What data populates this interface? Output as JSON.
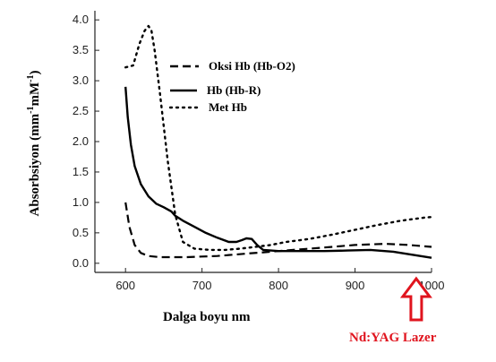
{
  "chart_data": {
    "type": "line",
    "xlabel": "Dalga boyu nm",
    "ylabel_parts": [
      "Absorbsiyon (mm",
      "-1",
      "mM",
      "-1",
      ")"
    ],
    "xlim": [
      560,
      1000
    ],
    "ylim": [
      -0.15,
      4.15
    ],
    "xticks": [
      600,
      700,
      800,
      900,
      1000
    ],
    "yticks": [
      0.0,
      0.5,
      1.0,
      1.5,
      2.0,
      2.5,
      3.0,
      3.5,
      4.0
    ],
    "ytick_labels": [
      "0.0",
      "0.5",
      "1.0",
      "1.5",
      "2.0",
      "2.5",
      "3.0",
      "3.5",
      "4.0"
    ],
    "series": [
      {
        "name": "Oksi Hb (Hb-O2)",
        "style": "dashed",
        "x": [
          600,
          605,
          612,
          620,
          630,
          645,
          660,
          680,
          700,
          720,
          740,
          760,
          780,
          800,
          830,
          860,
          900,
          940,
          970,
          1000
        ],
        "y": [
          1.0,
          0.6,
          0.3,
          0.17,
          0.12,
          0.1,
          0.1,
          0.1,
          0.11,
          0.12,
          0.14,
          0.16,
          0.18,
          0.2,
          0.23,
          0.26,
          0.3,
          0.32,
          0.3,
          0.27
        ]
      },
      {
        "name": "Hb  (Hb-R)",
        "style": "solid",
        "x": [
          600,
          603,
          607,
          612,
          620,
          630,
          640,
          650,
          660,
          665,
          675,
          690,
          705,
          720,
          735,
          745,
          752,
          758,
          765,
          772,
          780,
          800,
          830,
          860,
          890,
          920,
          950,
          975,
          1000
        ],
        "y": [
          2.9,
          2.4,
          1.95,
          1.6,
          1.3,
          1.1,
          0.98,
          0.92,
          0.85,
          0.78,
          0.7,
          0.6,
          0.5,
          0.42,
          0.35,
          0.35,
          0.38,
          0.41,
          0.4,
          0.3,
          0.22,
          0.2,
          0.2,
          0.2,
          0.21,
          0.22,
          0.19,
          0.14,
          0.09
        ]
      },
      {
        "name": "Met Hb",
        "style": "dotted",
        "x": [
          600,
          610,
          618,
          625,
          630,
          634,
          638,
          645,
          655,
          665,
          675,
          690,
          710,
          730,
          750,
          770,
          790,
          810,
          840,
          870,
          900,
          930,
          960,
          990,
          1000
        ],
        "y": [
          3.22,
          3.25,
          3.6,
          3.82,
          3.9,
          3.82,
          3.5,
          2.8,
          1.7,
          0.8,
          0.35,
          0.24,
          0.22,
          0.22,
          0.24,
          0.27,
          0.3,
          0.35,
          0.4,
          0.47,
          0.55,
          0.63,
          0.7,
          0.75,
          0.76
        ]
      }
    ],
    "legend_position": "upper-center",
    "annotation": {
      "text": "Nd:YAG Lazer",
      "x": 980,
      "color": "#e0141e"
    }
  }
}
